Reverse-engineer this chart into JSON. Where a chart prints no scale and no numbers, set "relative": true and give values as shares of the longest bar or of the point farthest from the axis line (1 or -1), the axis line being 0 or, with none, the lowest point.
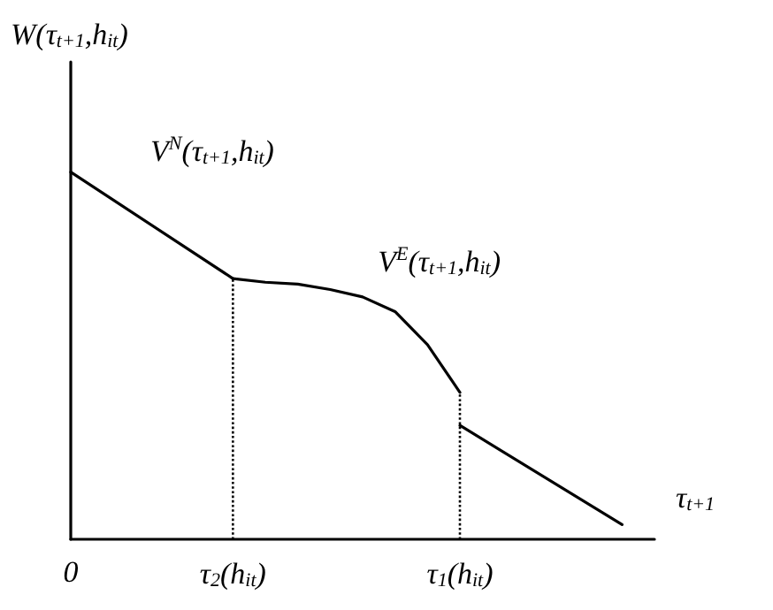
{
  "chart_data": {
    "type": "line",
    "relative": true,
    "xlabel": "τ$_{t+1}$",
    "ylabel": "W(τ$_{t+1}$,h$_{it}$)",
    "categories": [
      "0",
      null,
      null,
      null,
      null,
      "τ$_{2}$(h$_{it}$)",
      null,
      null,
      null,
      null,
      null,
      null,
      "τ$_{1}$(h$_{it}$)",
      null,
      null,
      null,
      null,
      null,
      null
    ],
    "series": [
      {
        "name": "V$^{N}$(τ$_{t+1}$,h$_{it}$)",
        "color": "#000000",
        "values": [
          1,
          null,
          null,
          null,
          null,
          0.71,
          null,
          null,
          null,
          null,
          null,
          null,
          null,
          null,
          null,
          null,
          null,
          null,
          null
        ]
      },
      {
        "name": "V$^{E}$(τ$_{t+1}$,h$_{it}$)",
        "color": "#000000",
        "values": [
          null,
          null,
          null,
          null,
          null,
          0.71,
          0.7,
          0.695,
          0.68,
          0.66,
          0.62,
          0.53,
          0.4,
          null,
          null,
          null,
          null,
          null,
          null
        ]
      },
      {
        "color": "#000000",
        "values": [
          null,
          null,
          null,
          null,
          null,
          null,
          null,
          null,
          null,
          null,
          null,
          null,
          0.31,
          null,
          null,
          null,
          null,
          0.04,
          null
        ]
      }
    ],
    "ref_lines": [
      {
        "axis": "x",
        "value": "τ$_{2}$(h$_{it}$)",
        "color": "#000000",
        "line_style": "dotted"
      },
      {
        "axis": "x",
        "value": "τ$_{1}$(h$_{it}$)",
        "color": "#000000",
        "line_style": "dotted"
      }
    ],
    "tick_labels": "x",
    "grid": false,
    "legend": false,
    "marker": "none",
    "line_style": "solid"
  }
}
